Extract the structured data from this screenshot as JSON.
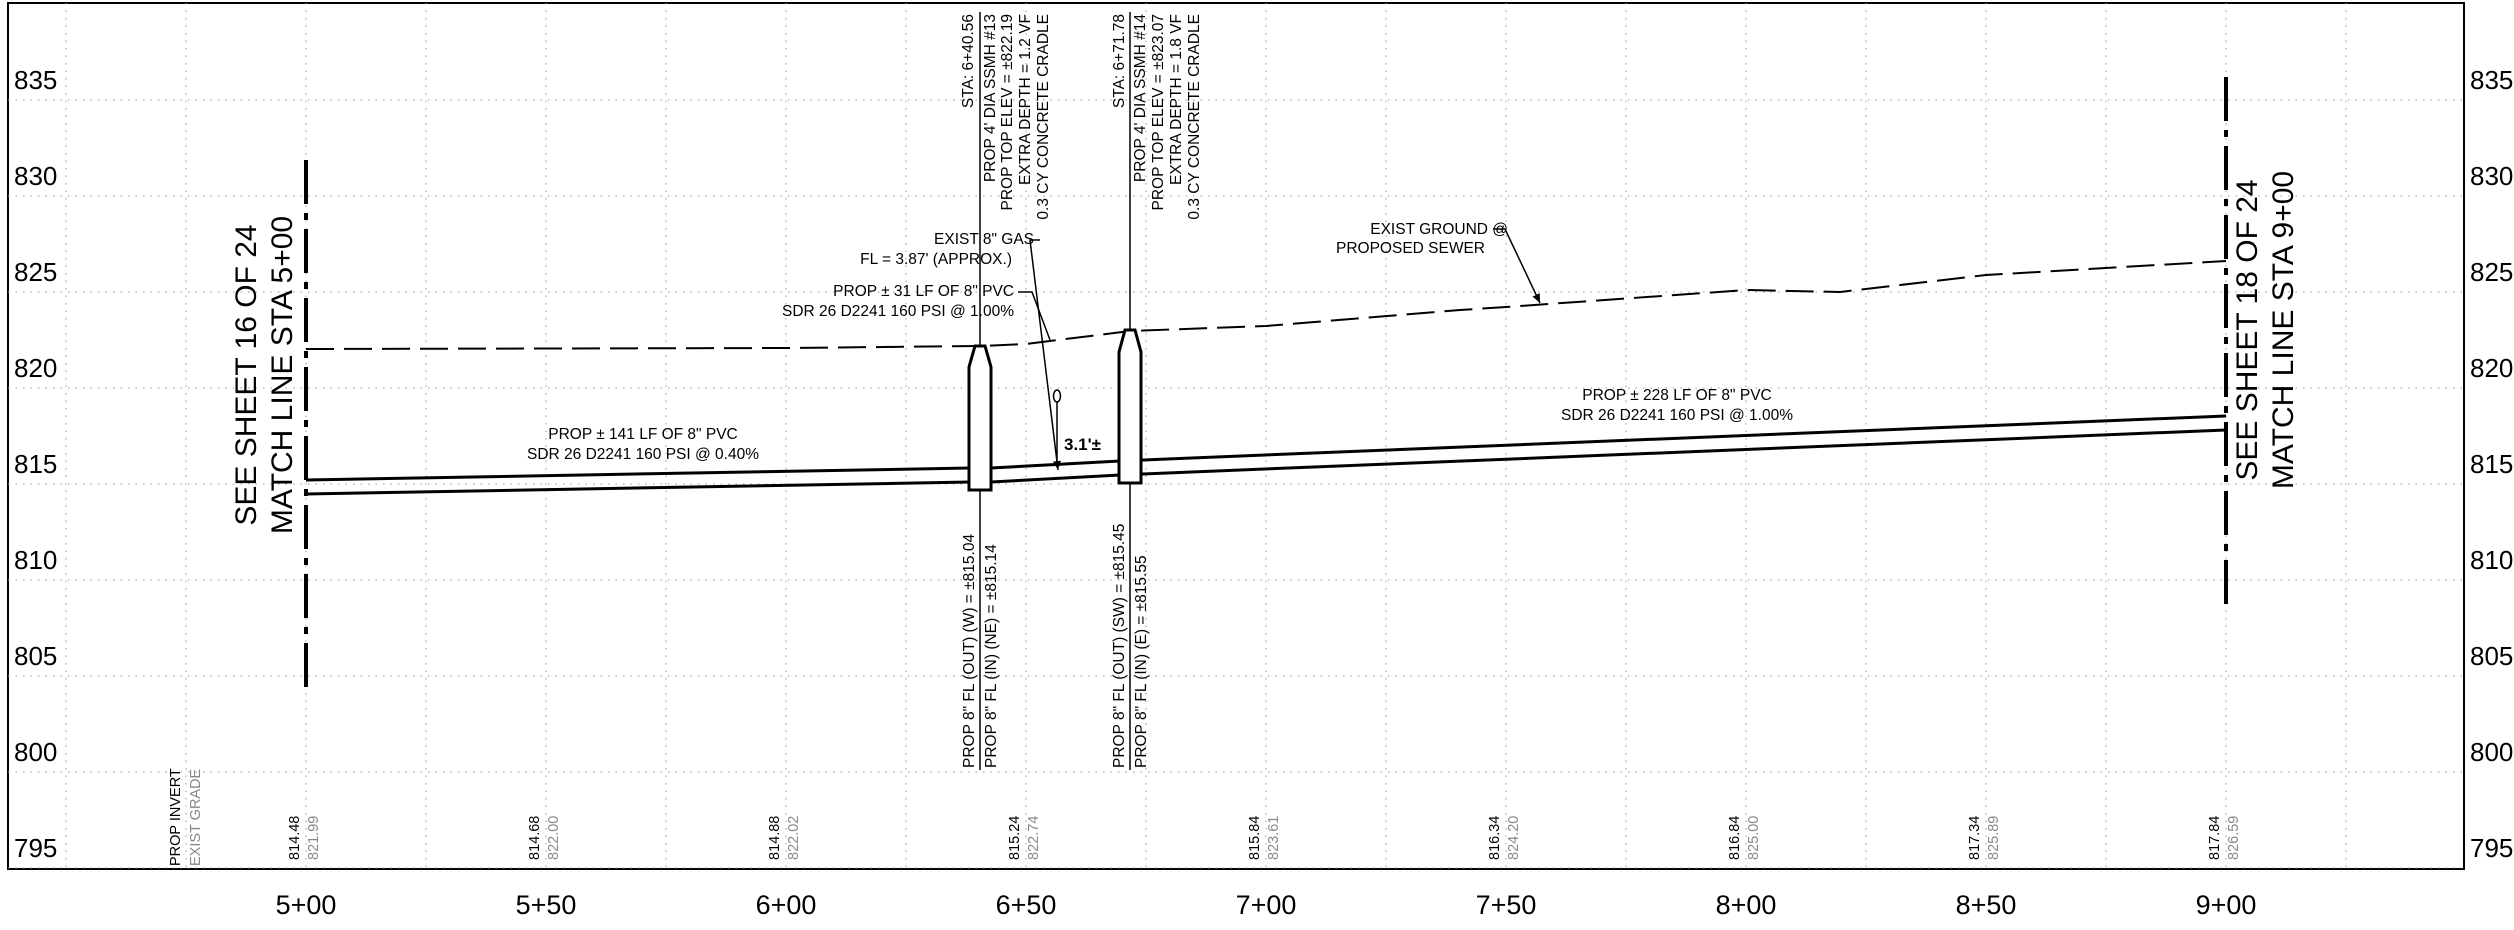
{
  "elevations": [
    "835",
    "830",
    "825",
    "820",
    "815",
    "810",
    "805",
    "800",
    "795"
  ],
  "stations": [
    "5+00",
    "5+50",
    "6+00",
    "6+50",
    "7+00",
    "7+50",
    "8+00",
    "8+50",
    "9+00"
  ],
  "grade_table": {
    "invert_label": "PROP INVERT",
    "grade_label": "EXIST GRADE",
    "entries": [
      {
        "invert": "814.48",
        "grade": "821.99"
      },
      {
        "invert": "814.68",
        "grade": "822.00"
      },
      {
        "invert": "814.88",
        "grade": "822.02"
      },
      {
        "invert": "815.24",
        "grade": "822.74"
      },
      {
        "invert": "815.84",
        "grade": "823.61"
      },
      {
        "invert": "816.34",
        "grade": "824.20"
      },
      {
        "invert": "816.84",
        "grade": "825.00"
      },
      {
        "invert": "817.34",
        "grade": "825.89"
      },
      {
        "invert": "817.84",
        "grade": "826.59"
      }
    ]
  },
  "match_left": {
    "line1": "SEE SHEET 16 OF 24",
    "line2": "MATCH LINE STA 5+00"
  },
  "match_right": {
    "line1": "SEE SHEET 18 OF 24",
    "line2": "MATCH LINE STA 9+00"
  },
  "manhole_13": {
    "sta": "STA: 6+40.56",
    "desc": "PROP 4' DIA SSMH #13",
    "top": "PROP TOP ELEV = ±822.19",
    "depth": "EXTRA DEPTH = 1.2 VF",
    "cradle": "0.3 CY CONCRETE CRADLE",
    "fl_out": "PROP 8\" FL (OUT) (W) = ±815.04",
    "fl_in": "PROP 8\" FL (IN) (NE) = ±815.14"
  },
  "manhole_14": {
    "sta": "STA: 6+71.78",
    "desc": "PROP 4' DIA SSMH #14",
    "top": "PROP TOP ELEV = ±823.07",
    "depth": "EXTRA DEPTH = 1.8 VF",
    "cradle": "0.3 CY CONCRETE CRADLE",
    "fl_out": "PROP 8\" FL (OUT) (SW) = ±815.45",
    "fl_in": "PROP 8\" FL (IN) (E) = ±815.55"
  },
  "gas": {
    "line1": "EXIST 8\" GAS",
    "line2": "FL = 3.87' (APPROX.)"
  },
  "pipe_31": {
    "line1": "PROP ± 31 LF OF 8\" PVC",
    "line2": "SDR 26 D2241 160 PSI @ 1.00%"
  },
  "pipe_141": {
    "line1": "PROP ± 141 LF OF 8\" PVC",
    "line2": "SDR 26 D2241 160 PSI @ 0.40%"
  },
  "pipe_228": {
    "line1": "PROP ± 228 LF OF 8\" PVC",
    "line2": "SDR 26 D2241 160 PSI @ 1.00%"
  },
  "ground": {
    "line1": "EXIST GROUND @",
    "line2": "PROPOSED SEWER"
  },
  "clearance": "3.1'±"
}
